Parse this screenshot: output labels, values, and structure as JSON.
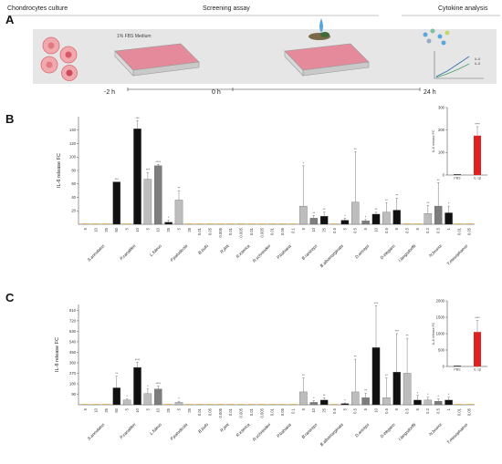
{
  "panel_a": {
    "label": "A",
    "stage_titles": [
      "Chondrocytes culture",
      "Screening assay",
      "Cytokine analysis"
    ],
    "medium_label": "1% FBS Medium",
    "timeline": [
      "-2 h",
      "0 h",
      "24 h"
    ],
    "legend_marks": [
      "IL-6",
      "IL-8"
    ]
  },
  "chart_data": [
    {
      "type": "bar",
      "panel": "B",
      "ylabel": "IL-6 release FC",
      "yticks": [
        20,
        40,
        60,
        80,
        100,
        120,
        140
      ],
      "ylim": [
        0,
        160
      ],
      "categories": [
        {
          "group": "S.annulatus",
          "label": "5",
          "value": 0,
          "err": 0,
          "sig": ""
        },
        {
          "group": "S.annulatus",
          "label": "10",
          "value": 0,
          "err": 0,
          "sig": ""
        },
        {
          "group": "S.annulatus",
          "label": "25",
          "value": 0,
          "err": 0,
          "sig": ""
        },
        {
          "group": "S.annulatus",
          "label": "50",
          "value": 63,
          "err": 0,
          "sig": "***"
        },
        {
          "group": "P.canaliferi",
          "label": "5",
          "value": 0,
          "err": 0,
          "sig": ""
        },
        {
          "group": "P.canaliferi",
          "label": "10",
          "value": 142,
          "err": 12,
          "sig": "***"
        },
        {
          "group": "L.fuleus",
          "label": "5",
          "value": 67,
          "err": 10,
          "sig": "***"
        },
        {
          "group": "L.fuleus",
          "label": "10",
          "value": 87,
          "err": 2,
          "sig": "****"
        },
        {
          "group": "L.fuleus",
          "label": "25",
          "value": 3,
          "err": 3,
          "sig": "*"
        },
        {
          "group": "P.paludicola",
          "label": "5",
          "value": 36,
          "err": 14,
          "sig": "**"
        },
        {
          "group": "P.paludicola",
          "label": "25",
          "value": 0,
          "err": 0,
          "sig": ""
        },
        {
          "group": "B.bufo",
          "label": "0.01",
          "value": 0,
          "err": 0,
          "sig": ""
        },
        {
          "group": "B.bufo",
          "label": "0.05",
          "value": 0,
          "err": 0,
          "sig": ""
        },
        {
          "group": "R.jimi",
          "label": "0.005",
          "value": 0,
          "err": 0,
          "sig": ""
        },
        {
          "group": "R.jimi",
          "label": "0.01",
          "value": 0,
          "err": 0,
          "sig": ""
        },
        {
          "group": "R.icterica",
          "label": "0.005",
          "value": 0,
          "err": 0,
          "sig": ""
        },
        {
          "group": "R.icterica",
          "label": "0.01",
          "value": 0,
          "err": 0,
          "sig": ""
        },
        {
          "group": "R.schneideri",
          "label": "0.005",
          "value": 0,
          "err": 0,
          "sig": ""
        },
        {
          "group": "R.schneideri",
          "label": "0.01",
          "value": 0,
          "err": 0,
          "sig": ""
        },
        {
          "group": "P.bahiana",
          "label": "0.05",
          "value": 0,
          "err": 0,
          "sig": ""
        },
        {
          "group": "P.bahiana",
          "label": "0.1",
          "value": 0,
          "err": 0,
          "sig": ""
        },
        {
          "group": "B.raniceps",
          "label": "5",
          "value": 27,
          "err": 60,
          "sig": "*"
        },
        {
          "group": "B.raniceps",
          "label": "10",
          "value": 9,
          "err": 4,
          "sig": "**"
        },
        {
          "group": "B.raniceps",
          "label": "25",
          "value": 12,
          "err": 6,
          "sig": "**"
        },
        {
          "group": "B.albomarginata",
          "label": "0.5",
          "value": 0,
          "err": 0,
          "sig": ""
        },
        {
          "group": "B.albomarginata",
          "label": "5",
          "value": 6,
          "err": 3,
          "sig": "*"
        },
        {
          "group": "D.anceps",
          "label": "0.5",
          "value": 33,
          "err": 75,
          "sig": "**"
        },
        {
          "group": "D.anceps",
          "label": "5",
          "value": 5,
          "err": 2,
          "sig": "*"
        },
        {
          "group": "D.anceps",
          "label": "10",
          "value": 15,
          "err": 3,
          "sig": "**"
        },
        {
          "group": "D.elegans",
          "label": "0.5",
          "value": 18,
          "err": 14,
          "sig": "**"
        },
        {
          "group": "D.elegans",
          "label": "5",
          "value": 21,
          "err": 18,
          "sig": "**"
        },
        {
          "group": "I.langsdorffii",
          "label": "0.5",
          "value": 0,
          "err": 0,
          "sig": ""
        },
        {
          "group": "I.langsdorffii",
          "label": "5",
          "value": 0,
          "err": 0,
          "sig": ""
        },
        {
          "group": "N.brunoi",
          "label": "0.2",
          "value": 16,
          "err": 12,
          "sig": "**"
        },
        {
          "group": "N.brunoi",
          "label": "0.5",
          "value": 27,
          "err": 35,
          "sig": "**"
        },
        {
          "group": "N.brunoi",
          "label": "1",
          "value": 17,
          "err": 10,
          "sig": "*"
        },
        {
          "group": "T.mesophaeus",
          "label": "0.01",
          "value": 0,
          "err": 0,
          "sig": ""
        },
        {
          "group": "T.mesophaeus",
          "label": "0.05",
          "value": 0,
          "err": 0,
          "sig": ""
        }
      ],
      "inset": {
        "ylabel": "IL-6 release FC",
        "yticks": [
          0,
          100,
          200,
          300
        ],
        "ylim": [
          0,
          300
        ],
        "categories": [
          "PBS",
          "IL-1β"
        ],
        "values": [
          1,
          175
        ],
        "err": [
          0,
          40
        ],
        "sig": [
          "",
          "****"
        ]
      }
    },
    {
      "type": "bar",
      "panel": "C",
      "ylabel": "IL-8 release FC",
      "yticks": [
        90,
        180,
        270,
        360,
        450,
        540,
        630,
        720,
        810
      ],
      "ylim": [
        0,
        860
      ],
      "categories": [
        {
          "group": "S.annulatus",
          "label": "5",
          "value": 0,
          "err": 0,
          "sig": ""
        },
        {
          "group": "S.annulatus",
          "label": "10",
          "value": 0,
          "err": 0,
          "sig": ""
        },
        {
          "group": "S.annulatus",
          "label": "25",
          "value": 0,
          "err": 0,
          "sig": ""
        },
        {
          "group": "S.annulatus",
          "label": "50",
          "value": 145,
          "err": 100,
          "sig": "**"
        },
        {
          "group": "P.canaliferi",
          "label": "5",
          "value": 40,
          "err": 10,
          "sig": "*"
        },
        {
          "group": "P.canaliferi",
          "label": "10",
          "value": 320,
          "err": 45,
          "sig": "****"
        },
        {
          "group": "L.fuleus",
          "label": "5",
          "value": 95,
          "err": 40,
          "sig": "*"
        },
        {
          "group": "L.fuleus",
          "label": "10",
          "value": 135,
          "err": 25,
          "sig": "****"
        },
        {
          "group": "L.fuleus",
          "label": "25",
          "value": 0,
          "err": 0,
          "sig": ""
        },
        {
          "group": "P.paludicola",
          "label": "5",
          "value": 20,
          "err": 10,
          "sig": "*"
        },
        {
          "group": "P.paludicola",
          "label": "25",
          "value": 0,
          "err": 0,
          "sig": ""
        },
        {
          "group": "B.bufo",
          "label": "0.01",
          "value": 0,
          "err": 0,
          "sig": ""
        },
        {
          "group": "B.bufo",
          "label": "0.05",
          "value": 0,
          "err": 0,
          "sig": ""
        },
        {
          "group": "R.jimi",
          "label": "0.005",
          "value": 0,
          "err": 0,
          "sig": ""
        },
        {
          "group": "R.jimi",
          "label": "0.01",
          "value": 0,
          "err": 0,
          "sig": ""
        },
        {
          "group": "R.icterica",
          "label": "0.005",
          "value": 0,
          "err": 0,
          "sig": ""
        },
        {
          "group": "R.icterica",
          "label": "0.01",
          "value": 0,
          "err": 0,
          "sig": ""
        },
        {
          "group": "R.schneideri",
          "label": "0.005",
          "value": 0,
          "err": 0,
          "sig": ""
        },
        {
          "group": "R.schneideri",
          "label": "0.01",
          "value": 0,
          "err": 0,
          "sig": ""
        },
        {
          "group": "P.bahiana",
          "label": "0.05",
          "value": 0,
          "err": 0,
          "sig": ""
        },
        {
          "group": "P.bahiana",
          "label": "0.1",
          "value": 0,
          "err": 0,
          "sig": ""
        },
        {
          "group": "B.raniceps",
          "label": "5",
          "value": 110,
          "err": 120,
          "sig": "**"
        },
        {
          "group": "B.raniceps",
          "label": "10",
          "value": 20,
          "err": 15,
          "sig": "*"
        },
        {
          "group": "B.raniceps",
          "label": "25",
          "value": 40,
          "err": 20,
          "sig": "**"
        },
        {
          "group": "B.albomarginata",
          "label": "0.5",
          "value": 0,
          "err": 0,
          "sig": ""
        },
        {
          "group": "B.albomarginata",
          "label": "5",
          "value": 10,
          "err": 5,
          "sig": "*"
        },
        {
          "group": "D.anceps",
          "label": "0.5",
          "value": 110,
          "err": 280,
          "sig": "**"
        },
        {
          "group": "D.anceps",
          "label": "5",
          "value": 60,
          "err": 40,
          "sig": "**"
        },
        {
          "group": "D.anceps",
          "label": "10",
          "value": 490,
          "err": 360,
          "sig": "***"
        },
        {
          "group": "D.elegans",
          "label": "0.5",
          "value": 60,
          "err": 170,
          "sig": "**"
        },
        {
          "group": "D.elegans",
          "label": "5",
          "value": 280,
          "err": 330,
          "sig": "***"
        },
        {
          "group": "I.langsdorffii",
          "label": "0.5",
          "value": 270,
          "err": 300,
          "sig": "**"
        },
        {
          "group": "I.langsdorffii",
          "label": "5",
          "value": 40,
          "err": 40,
          "sig": "*"
        },
        {
          "group": "N.brunoi",
          "label": "0.2",
          "value": 40,
          "err": 25,
          "sig": "*"
        },
        {
          "group": "N.brunoi",
          "label": "0.5",
          "value": 30,
          "err": 20,
          "sig": "*"
        },
        {
          "group": "N.brunoi",
          "label": "1",
          "value": 40,
          "err": 25,
          "sig": "*"
        },
        {
          "group": "T.mesophaeus",
          "label": "0.01",
          "value": 0,
          "err": 0,
          "sig": ""
        },
        {
          "group": "T.mesophaeus",
          "label": "0.05",
          "value": 0,
          "err": 0,
          "sig": ""
        }
      ],
      "inset": {
        "ylabel": "IL-8 release FC",
        "yticks": [
          0,
          500,
          1000,
          1500,
          2000
        ],
        "ylim": [
          0,
          2000
        ],
        "categories": [
          "PBS",
          "IL-1β"
        ],
        "values": [
          1,
          1050
        ],
        "err": [
          0,
          350
        ],
        "sig": [
          "",
          "****"
        ]
      }
    }
  ]
}
